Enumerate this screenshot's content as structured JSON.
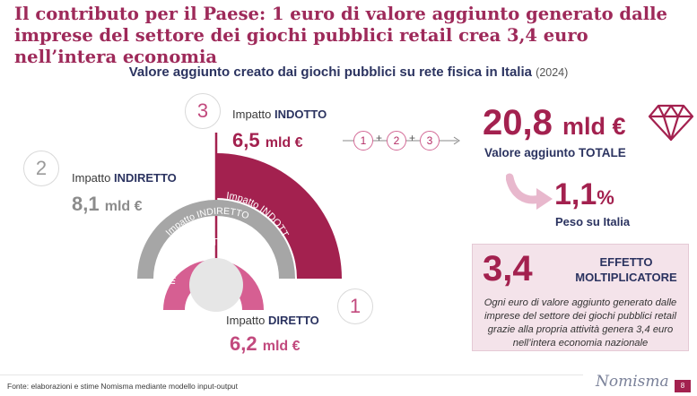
{
  "title": "Il contributo per il Paese: 1 euro di valore aggiunto generato dalle imprese del settore dei giochi pubblici retail crea 3,4 euro nell’intera economia",
  "subtitle": {
    "text": "Valore aggiunto creato dai giochi pubblici su rete fisica in Italia",
    "year": "(2024)"
  },
  "impacts": {
    "indotto": {
      "number": "3",
      "prefix": "Impatto ",
      "name": "INDOTTO",
      "value": "6,5",
      "unit": "mld €",
      "arc_label": "Impatto INDOTTO",
      "color": "#a3214f"
    },
    "indiretto": {
      "number": "2",
      "prefix": "Impatto ",
      "name": "INDIRETTO",
      "value": "8,1",
      "unit": "mld €",
      "arc_label": "Impatto INDIRETTO",
      "color": "#a6a6a6"
    },
    "diretto": {
      "number": "1",
      "prefix": "Impatto ",
      "name": "DIRETTO",
      "value": "6,2",
      "unit": "mld €",
      "arc_label": "Impatto DIRETTO",
      "color": "#d65f92"
    }
  },
  "formula": {
    "terms": [
      "1",
      "2",
      "3"
    ],
    "operator": "+"
  },
  "total": {
    "value": "20,8",
    "unit": "mld €",
    "label": "Valore aggiunto TOTALE",
    "icon": "diamond-icon"
  },
  "peso": {
    "value": "1,1",
    "unit": "%",
    "label": "Peso su Italia",
    "icon": "curved-arrow-icon"
  },
  "multiplier": {
    "value": "3,4",
    "title_line1": "EFFETTO",
    "title_line2": "MOLTIPLICATORE",
    "desc_lines": [
      "Ogni euro di valore aggiunto generato dalle",
      "imprese del settore dei giochi pubblici retail",
      "grazie alla propria attività genera 3,4 euro",
      "nell’intera economia nazionale"
    ]
  },
  "footer": {
    "source": "Fonte: elaborazioni e stime Nomisma mediante modello input-output",
    "brand": "Nomisma",
    "page": "8"
  }
}
